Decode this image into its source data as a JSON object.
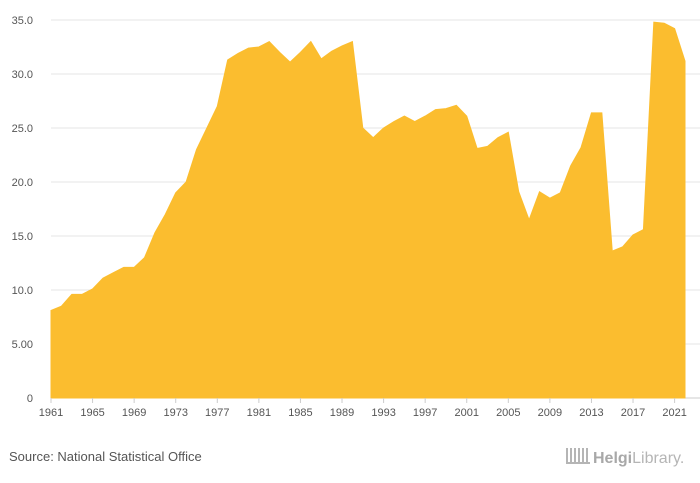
{
  "chart_data": {
    "type": "area",
    "title": "",
    "xlabel": "",
    "ylabel": "",
    "color": "#FBBD2F",
    "ylim": [
      0,
      35
    ],
    "yticks": [
      "0",
      "5.00",
      "10.0",
      "15.0",
      "20.0",
      "25.0",
      "30.0",
      "35.0"
    ],
    "xlim": [
      1961,
      2022
    ],
    "xticks": [
      1961,
      1965,
      1969,
      1973,
      1977,
      1981,
      1985,
      1989,
      1993,
      1997,
      2001,
      2005,
      2009,
      2013,
      2017,
      2021
    ],
    "x": [
      1961,
      1962,
      1963,
      1964,
      1965,
      1966,
      1967,
      1968,
      1969,
      1970,
      1971,
      1972,
      1973,
      1974,
      1975,
      1976,
      1977,
      1978,
      1979,
      1980,
      1981,
      1982,
      1983,
      1984,
      1985,
      1986,
      1987,
      1988,
      1989,
      1990,
      1991,
      1992,
      1993,
      1994,
      1995,
      1996,
      1997,
      1998,
      1999,
      2000,
      2001,
      2002,
      2003,
      2004,
      2005,
      2006,
      2007,
      2008,
      2009,
      2010,
      2011,
      2012,
      2013,
      2014,
      2015,
      2016,
      2017,
      2018,
      2019,
      2020,
      2021,
      2022
    ],
    "values": [
      8.1,
      8.5,
      9.6,
      9.6,
      10.1,
      11.1,
      11.6,
      12.1,
      12.1,
      13.0,
      15.3,
      17.0,
      19.0,
      20.0,
      23.0,
      25.0,
      27.0,
      31.3,
      31.9,
      32.4,
      32.5,
      33.0,
      32.0,
      31.1,
      32.0,
      33.0,
      31.4,
      32.1,
      32.6,
      33.0,
      25.0,
      24.1,
      25.0,
      25.6,
      26.1,
      25.6,
      26.1,
      26.7,
      26.8,
      27.1,
      26.1,
      23.1,
      23.3,
      24.1,
      24.6,
      19.1,
      16.5,
      19.1,
      18.5,
      19.0,
      21.5,
      23.2,
      26.4,
      26.4,
      13.6,
      14.0,
      15.1,
      15.6,
      34.8,
      34.7,
      34.2,
      31.2
    ]
  },
  "source_text": "Source: National Statistical Office",
  "brand": {
    "prefix": "Helgi",
    "suffix": "Library."
  }
}
